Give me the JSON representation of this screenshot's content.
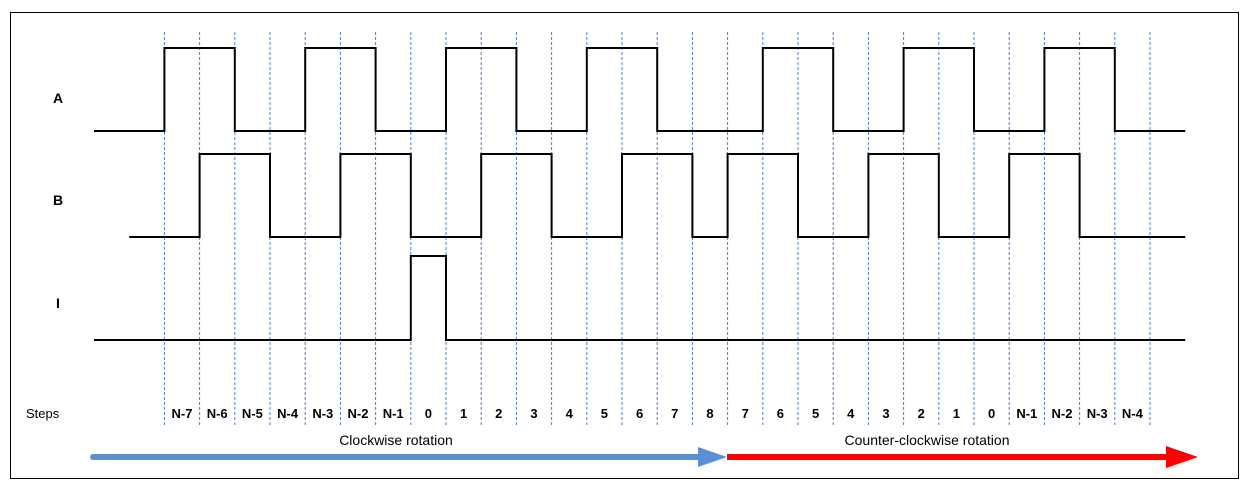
{
  "signals": [
    {
      "name": "A",
      "states": [
        0,
        0,
        1,
        1,
        0,
        0,
        1,
        1,
        0,
        0,
        1,
        1,
        0,
        0,
        1,
        1,
        0,
        0,
        0,
        1,
        1,
        0,
        0,
        1,
        1,
        0,
        0,
        1,
        1,
        0
      ]
    },
    {
      "name": "B",
      "states": [
        0,
        0,
        0,
        1,
        1,
        0,
        0,
        1,
        1,
        0,
        0,
        1,
        1,
        0,
        0,
        1,
        1,
        0,
        1,
        1,
        0,
        0,
        1,
        1,
        0,
        0,
        1,
        1,
        0,
        0
      ]
    },
    {
      "name": "I",
      "states": [
        0,
        0,
        0,
        0,
        0,
        0,
        0,
        0,
        0,
        1,
        0,
        0,
        0,
        0,
        0,
        0,
        0,
        0,
        0,
        0,
        0,
        0,
        0,
        0,
        0,
        0,
        0,
        0,
        0,
        0
      ]
    }
  ],
  "steps_label": "Steps",
  "steps": [
    "N-7",
    "N-6",
    "N-5",
    "N-4",
    "N-3",
    "N-2",
    "N-1",
    "0",
    "1",
    "2",
    "3",
    "4",
    "5",
    "6",
    "7",
    "8",
    "7",
    "6",
    "5",
    "4",
    "3",
    "2",
    "1",
    "0",
    "N-1",
    "N-2",
    "N-3",
    "N-4"
  ],
  "arrows": {
    "clockwise": {
      "label": "Clockwise rotation",
      "color": "#5b8fd4"
    },
    "counterclockwise": {
      "label": "Counter-clockwise rotation",
      "color": "#ff0000"
    }
  },
  "colors": {
    "signal": "#000000",
    "gridline": "#4a7cc4"
  }
}
